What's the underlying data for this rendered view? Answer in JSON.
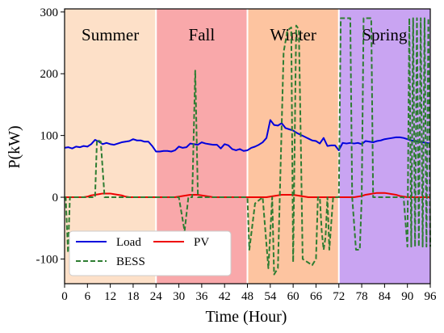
{
  "chart_data": {
    "type": "line",
    "title": "",
    "xlabel": "Time (Hour)",
    "ylabel": "P(kW)",
    "xlim": [
      0,
      96
    ],
    "ylim": [
      -140,
      305
    ],
    "x_ticks": [
      0,
      6,
      12,
      18,
      24,
      30,
      36,
      42,
      48,
      54,
      60,
      66,
      72,
      78,
      84,
      90,
      96
    ],
    "y_ticks": [
      -100,
      0,
      100,
      200,
      300
    ],
    "grid": false,
    "legend_position": "bottom-left",
    "seasons": [
      {
        "label": "Summer",
        "start": 0,
        "end": 24,
        "color": "#fde0c8"
      },
      {
        "label": "Fall",
        "start": 24,
        "end": 48,
        "color": "#f9a8aa"
      },
      {
        "label": "Winter",
        "start": 48,
        "end": 72,
        "color": "#fdc4a0"
      },
      {
        "label": "Spring",
        "start": 72,
        "end": 96,
        "color": "#c9a4f2"
      }
    ],
    "series": [
      {
        "name": "Load",
        "color": "#0000dd",
        "style": "solid",
        "x": [
          0,
          1,
          2,
          3,
          4,
          5,
          6,
          7,
          8,
          9,
          10,
          11,
          12,
          13,
          14,
          15,
          16,
          17,
          18,
          19,
          20,
          21,
          22,
          23,
          24,
          25,
          26,
          27,
          28,
          29,
          30,
          31,
          32,
          33,
          34,
          35,
          36,
          37,
          38,
          39,
          40,
          41,
          42,
          43,
          44,
          45,
          46,
          47,
          48,
          49,
          50,
          51,
          52,
          53,
          54,
          55,
          56,
          57,
          58,
          59,
          60,
          61,
          62,
          63,
          64,
          65,
          66,
          67,
          68,
          69,
          70,
          71,
          72,
          73,
          74,
          75,
          76,
          77,
          78,
          79,
          80,
          81,
          82,
          83,
          84,
          85,
          86,
          87,
          88,
          89,
          90,
          91,
          92,
          93,
          94,
          95,
          96
        ],
        "y": [
          80,
          81,
          79,
          82,
          81,
          83,
          82,
          86,
          93,
          90,
          86,
          88,
          86,
          85,
          87,
          89,
          90,
          91,
          94,
          92,
          92,
          90,
          90,
          83,
          74,
          74,
          75,
          75,
          74,
          76,
          82,
          80,
          81,
          87,
          86,
          85,
          89,
          87,
          86,
          85,
          85,
          79,
          86,
          84,
          78,
          76,
          78,
          75,
          76,
          80,
          82,
          85,
          89,
          96,
          125,
          117,
          116,
          120,
          112,
          110,
          108,
          104,
          101,
          98,
          95,
          92,
          91,
          87,
          96,
          83,
          84,
          84,
          76,
          88,
          87,
          88,
          87,
          88,
          86,
          91,
          90,
          89,
          91,
          92,
          94,
          95,
          96,
          97,
          97,
          96,
          94,
          92,
          91,
          90,
          89,
          88,
          87
        ]
      },
      {
        "name": "PV",
        "color": "#ee0000",
        "style": "solid",
        "x": [
          0,
          2,
          4,
          5,
          6,
          7,
          8,
          9,
          10,
          11,
          12,
          13,
          14,
          15,
          16,
          17,
          18,
          24,
          26,
          28,
          29,
          30,
          31,
          32,
          33,
          34,
          35,
          36,
          37,
          38,
          39,
          40,
          42,
          48,
          50,
          52,
          53,
          54,
          55,
          56,
          57,
          58,
          59,
          60,
          61,
          62,
          63,
          64,
          65,
          66,
          72,
          74,
          76,
          77,
          78,
          79,
          80,
          81,
          82,
          83,
          84,
          85,
          86,
          87,
          88,
          89,
          90,
          96
        ],
        "y": [
          0,
          0,
          0,
          0,
          1,
          3,
          4,
          5,
          6,
          6,
          6,
          5,
          4,
          3,
          1,
          0,
          0,
          0,
          0,
          0,
          0,
          1,
          2,
          3,
          4,
          4,
          4,
          3,
          2,
          1,
          0,
          0,
          0,
          0,
          0,
          0,
          0,
          1,
          2,
          3,
          4,
          4,
          4,
          4,
          3,
          2,
          1,
          0,
          0,
          0,
          0,
          0,
          0,
          1,
          2,
          4,
          5,
          6,
          7,
          7,
          7,
          6,
          5,
          4,
          2,
          1,
          0,
          0
        ]
      },
      {
        "name": "BESS",
        "color": "#2e7d32",
        "style": "dashed",
        "x": [
          0,
          0.3,
          0.9,
          1.4,
          2,
          3,
          8,
          8.5,
          9.5,
          10.5,
          11,
          12,
          24,
          24.5,
          30,
          31.5,
          32.5,
          33.5,
          34.3,
          35,
          36,
          48,
          48.5,
          50,
          52,
          53.5,
          54.5,
          55,
          56,
          57.5,
          58.5,
          59.5,
          60,
          60.8,
          61.5,
          62,
          62.5,
          65,
          66,
          66.5,
          67,
          67.5,
          68,
          68.5,
          69,
          69.5,
          70.5,
          71,
          72,
          72.5,
          73.5,
          74,
          75,
          75.5,
          76.5,
          77.5,
          78,
          78.5,
          80.5,
          81,
          82,
          83,
          85,
          87,
          89,
          90,
          90.5,
          91,
          91.5,
          92,
          92.5,
          93,
          93.5,
          94,
          94.5,
          95,
          95.5,
          96
        ],
        "y": [
          0,
          0,
          -90,
          0,
          0,
          0,
          0,
          93,
          90,
          0,
          0,
          0,
          0,
          0,
          0,
          -55,
          0,
          0,
          205,
          0,
          0,
          0,
          -85,
          -10,
          0,
          -115,
          0,
          -125,
          -115,
          235,
          270,
          275,
          -105,
          278,
          272,
          95,
          -100,
          -110,
          -100,
          0,
          0,
          -55,
          -85,
          -65,
          0,
          -85,
          0,
          0,
          0,
          290,
          290,
          290,
          290,
          0,
          -85,
          -85,
          0,
          290,
          290,
          0,
          0,
          0,
          0,
          0,
          0,
          -80,
          290,
          -80,
          290,
          -80,
          290,
          -80,
          290,
          -80,
          290,
          -80,
          290,
          -80
        ]
      }
    ]
  }
}
